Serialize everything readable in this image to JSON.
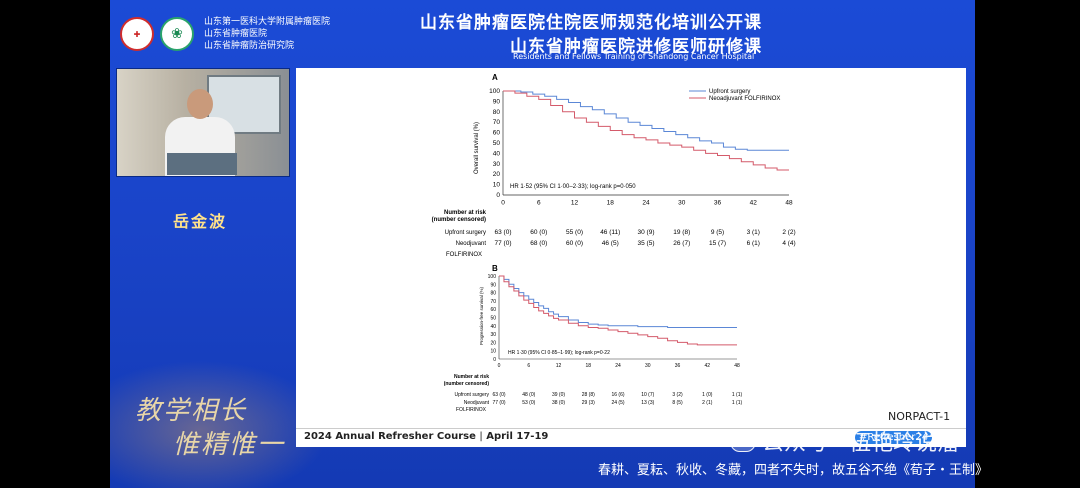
{
  "header": {
    "institutions": [
      "山东第一医科大学附属肿瘤医院",
      "山东省肿瘤医院",
      "山东省肿瘤防治研究院"
    ],
    "title_line1": "山东省肿瘤医院住院医师规范化培训公开课",
    "title_line2": "山东省肿瘤医院进修医师研修课",
    "subtitle_en": "Residents and Fellows Training of Shandong Cancer Hospital"
  },
  "speaker_name": "岳金波",
  "calligraphy": {
    "line1": "教学相长",
    "line2": "惟精惟一"
  },
  "slide": {
    "panel_a_label": "A",
    "panel_b_label": "B",
    "legend": [
      "Upfront surgery",
      "Neoadjuvant FOLFIRINOX"
    ],
    "panel_a_ylabel": "Overall survival (%)",
    "panel_b_ylabel": "Progression-free survival (%)",
    "panel_a_hr": "HR 1·52 (95% CI 1·00–2·33); log-rank p=0·050",
    "panel_b_hr": "HR 1·30 (95% CI 0·85–1·99); log-rank p=0·22",
    "risk_title": [
      "Number at risk",
      "(number censored)"
    ],
    "row_label_upfront": "Upfront surgery",
    "row_label_neo": [
      "Neodjuvant",
      "FOLFIRINOX"
    ],
    "x_ticks": [
      "0",
      "6",
      "12",
      "18",
      "24",
      "30",
      "36",
      "42",
      "48"
    ],
    "y_ticks": [
      "100",
      "90",
      "80",
      "70",
      "60",
      "50",
      "40",
      "30",
      "20",
      "10",
      "0"
    ],
    "panel_a_risk_upfront": [
      "63 (0)",
      "60 (0)",
      "55 (0)",
      "46 (11)",
      "30 (9)",
      "19 (8)",
      "9 (5)",
      "3 (1)",
      "2 (2)"
    ],
    "panel_a_risk_neo": [
      "77 (0)",
      "68 (0)",
      "60 (0)",
      "46 (5)",
      "35 (5)",
      "26 (7)",
      "15 (7)",
      "6 (1)",
      "4 (4)"
    ],
    "panel_b_risk_upfront": [
      "63 (0)",
      "48 (0)",
      "39 (0)",
      "28 (8)",
      "16 (6)",
      "10 (7)",
      "3 (2)",
      "1 (0)",
      "1 (1)"
    ],
    "panel_b_risk_neo": [
      "77 (0)",
      "53 (0)",
      "38 (0)",
      "29 (3)",
      "24 (5)",
      "13 (3)",
      "8 (5)",
      "2 (1)",
      "1 (1)"
    ],
    "study_name": "NORPACT-1",
    "colors": {
      "upfront": "#5b87d6",
      "neo": "#d45a6a"
    }
  },
  "footer": {
    "course": "2024 Annual Refresher Course",
    "separator": "|",
    "dates": "April 17-19",
    "watermark": "公众号 · 伍艳玲说瘤",
    "hashtag": "#Refresher24",
    "quote": "春耕、夏耘、秋收、冬藏，四者不失时，故五谷不绝《荀子・王制》"
  }
}
